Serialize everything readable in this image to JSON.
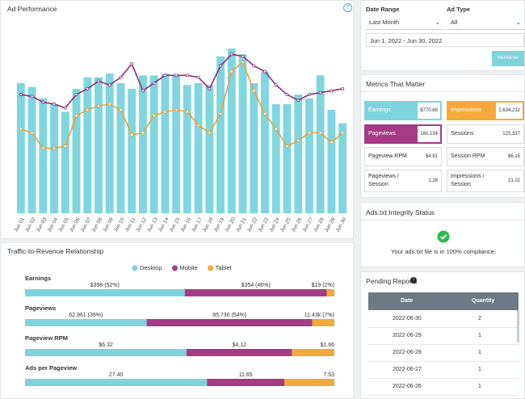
{
  "ad_performance": {
    "title": "Ad Performance",
    "chart_data": {
      "type": "bar_line",
      "categories": [
        "Jun 01",
        "Jun 02",
        "Jun 03",
        "Jun 04",
        "Jun 05",
        "Jun 06",
        "Jun 07",
        "Jun 08",
        "Jun 09",
        "Jun 10",
        "Jun 11",
        "Jun 12",
        "Jun 13",
        "Jun 14",
        "Jun 15",
        "Jun 16",
        "Jun 17",
        "Jun 18",
        "Jun 19",
        "Jun 20",
        "Jun 21",
        "Jun 22",
        "Jun 23",
        "Jun 24",
        "Jun 25",
        "Jun 26",
        "Jun 27",
        "Jun 28",
        "Jun 29",
        "Jun 30"
      ],
      "ylim": [
        0,
        100
      ],
      "series": [
        {
          "type": "bar",
          "color": "#7fd6df",
          "values": [
            68,
            66,
            60,
            57,
            53,
            65,
            71,
            71,
            73,
            68,
            65,
            72,
            72,
            73,
            72,
            67,
            68,
            67,
            82,
            86,
            83,
            68,
            74,
            57,
            57,
            62,
            60,
            72,
            54,
            47
          ]
        },
        {
          "type": "line",
          "color": "#8e2e7e",
          "values": [
            62,
            61,
            58,
            57,
            55,
            62,
            65,
            69,
            67,
            71,
            78,
            64,
            68,
            72,
            72,
            72,
            71,
            65,
            77,
            83,
            82,
            77,
            74,
            67,
            62,
            59,
            62,
            63,
            64,
            65
          ]
        },
        {
          "type": "line",
          "color": "#e6a23c",
          "values": [
            44,
            42,
            34,
            34,
            35,
            51,
            54,
            56,
            57,
            54,
            41,
            42,
            51,
            53,
            54,
            53,
            46,
            42,
            52,
            74,
            79,
            64,
            52,
            44,
            35,
            38,
            42,
            42,
            37,
            42
          ]
        }
      ]
    }
  },
  "filters": {
    "date_range": {
      "label": "Date Range",
      "value": "Last Month"
    },
    "ad_type": {
      "label": "Ad Type",
      "value": "All"
    },
    "period": "Jun 1, 2022 - Jun 30, 2022",
    "refresh": "REFRESH"
  },
  "metrics": {
    "title": "Metrics That Matter",
    "items": [
      {
        "label": "Earnings",
        "value": "$770.68"
      },
      {
        "label": "Impressions",
        "value": "2,634,232"
      },
      {
        "label": "Pageviews",
        "value": "160,134"
      },
      {
        "label": "Sessions",
        "value": "125,337"
      },
      {
        "label": "Pageview RPM",
        "value": "$4.81"
      },
      {
        "label": "Session RPM",
        "value": "$6.15"
      },
      {
        "label": "Pageviews / Session",
        "value": "1.28"
      },
      {
        "label": "Impressions / Session",
        "value": "21.02"
      }
    ]
  },
  "ads_txt": {
    "title": "Ads.txt Integrity Status",
    "message": "Your ads.txt file is in 100% compliance."
  },
  "traffic": {
    "title": "Traffic-to-Revenue Relationship",
    "chart_data": {
      "type": "stacked_bar_h",
      "categories": [
        "Earnings",
        "Pageviews",
        "Pageview RPM",
        "Ads per Pageview"
      ],
      "series": [
        {
          "name": "Desktop",
          "color": "#7fd3dc",
          "values": [
            398,
            62961,
            6.32,
            27.4
          ],
          "value_labels": [
            "$398 (52%)",
            "62,961 (39%)",
            "$6.32",
            "27.40"
          ]
        },
        {
          "name": "Mobile",
          "color": "#a53b84",
          "values": [
            354,
            85730,
            4.12,
            11.65
          ],
          "value_labels": [
            "$354 (46%)",
            "85,730 (54%)",
            "$4.12",
            "11.65"
          ]
        },
        {
          "name": "Tablet",
          "color": "#f2a93b",
          "values": [
            19,
            11430,
            1.66,
            7.53
          ],
          "value_labels": [
            "$19 (2%)",
            "11.43k (7%)",
            "$1.66",
            "7.53"
          ]
        }
      ]
    }
  },
  "pending": {
    "title": "Pending Reports",
    "table": {
      "header": [
        "Date",
        "Quantity"
      ],
      "rows": [
        [
          "2022-06-30",
          "2"
        ],
        [
          "2022-06-29",
          "1"
        ],
        [
          "2022-06-28",
          "1"
        ],
        [
          "2022-06-27",
          "1"
        ],
        [
          "2022-06-26",
          "1"
        ]
      ]
    }
  }
}
